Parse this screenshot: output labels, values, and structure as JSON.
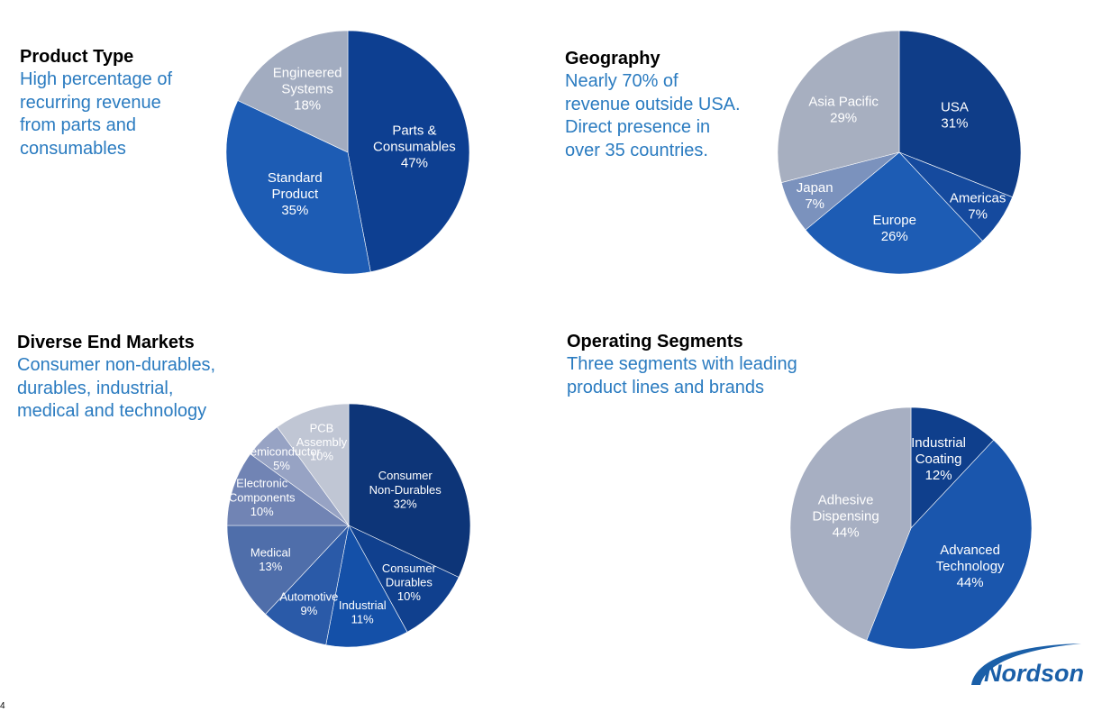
{
  "panels": [
    {
      "heading": "Product Type",
      "subtitle_lines": [
        "High percentage of",
        "recurring revenue",
        "from parts and",
        "consumables"
      ]
    },
    {
      "heading": "Geography",
      "subtitle_lines": [
        "Nearly 70% of",
        "revenue outside USA.",
        "Direct presence in",
        "over 35 countries."
      ]
    },
    {
      "heading": "Diverse End Markets",
      "subtitle_lines": [
        "Consumer non-durables,",
        "durables, industrial,",
        "medical and technology"
      ]
    },
    {
      "heading": "Operating Segments",
      "subtitle_lines": [
        "Three segments with leading",
        "product lines and brands"
      ]
    }
  ],
  "chart_data": [
    {
      "type": "pie",
      "title": "",
      "slices": [
        {
          "label": [
            "Parts &",
            "Consumables"
          ],
          "value": 47,
          "value_label": "47%",
          "color": "#0d3f91"
        },
        {
          "label": [
            "Standard",
            "Product"
          ],
          "value": 35,
          "value_label": "35%",
          "color": "#1d5cb4"
        },
        {
          "label": [
            "Engineered",
            "Systems"
          ],
          "value": 18,
          "value_label": "18%",
          "color": "#a2acc0"
        }
      ]
    },
    {
      "type": "pie",
      "title": "",
      "slices": [
        {
          "label": [
            "USA"
          ],
          "value": 31,
          "value_label": "31%",
          "color": "#0f3d88"
        },
        {
          "label": [
            "Americas"
          ],
          "value": 7,
          "value_label": "7%",
          "color": "#154a9e"
        },
        {
          "label": [
            "Europe"
          ],
          "value": 26,
          "value_label": "26%",
          "color": "#1d5cb4"
        },
        {
          "label": [
            "Japan"
          ],
          "value": 7,
          "value_label": "7%",
          "color": "#7b92bd"
        },
        {
          "label": [
            "Asia Pacific"
          ],
          "value": 29,
          "value_label": "29%",
          "color": "#a7afc0"
        }
      ]
    },
    {
      "type": "pie",
      "title": "",
      "slices": [
        {
          "label": [
            "Consumer",
            "Non-Durables"
          ],
          "value": 32,
          "value_label": "32%",
          "color": "#0d3578"
        },
        {
          "label": [
            "Consumer",
            "Durables"
          ],
          "value": 10,
          "value_label": "10%",
          "color": "#10408e"
        },
        {
          "label": [
            "Industrial"
          ],
          "value": 11,
          "value_label": "11%",
          "color": "#1450a8"
        },
        {
          "label": [
            "Automotive"
          ],
          "value": 9,
          "value_label": "9%",
          "color": "#2a5aa8"
        },
        {
          "label": [
            "Medical"
          ],
          "value": 13,
          "value_label": "13%",
          "color": "#4f6eaa"
        },
        {
          "label": [
            "Electronic",
            "Components"
          ],
          "value": 10,
          "value_label": "10%",
          "color": "#7184b4"
        },
        {
          "label": [
            "Semiconductor"
          ],
          "value": 5,
          "value_label": "5%",
          "color": "#97a3c4"
        },
        {
          "label": [
            "PCB",
            "Assembly"
          ],
          "value": 10,
          "value_label": "10%",
          "color": "#c0c6d4"
        }
      ]
    },
    {
      "type": "pie",
      "title": "",
      "slices": [
        {
          "label": [
            "Industrial",
            "Coating"
          ],
          "value": 12,
          "value_label": "12%",
          "color": "#0f3f8c"
        },
        {
          "label": [
            "Advanced",
            "Technology"
          ],
          "value": 44,
          "value_label": "44%",
          "color": "#1a56ad"
        },
        {
          "label": [
            "Adhesive",
            "Dispensing"
          ],
          "value": 44,
          "value_label": "44%",
          "color": "#a7afc2"
        }
      ]
    }
  ],
  "logo": {
    "text": "Nordson",
    "color": "#1a5fa8"
  },
  "page_number": "4"
}
